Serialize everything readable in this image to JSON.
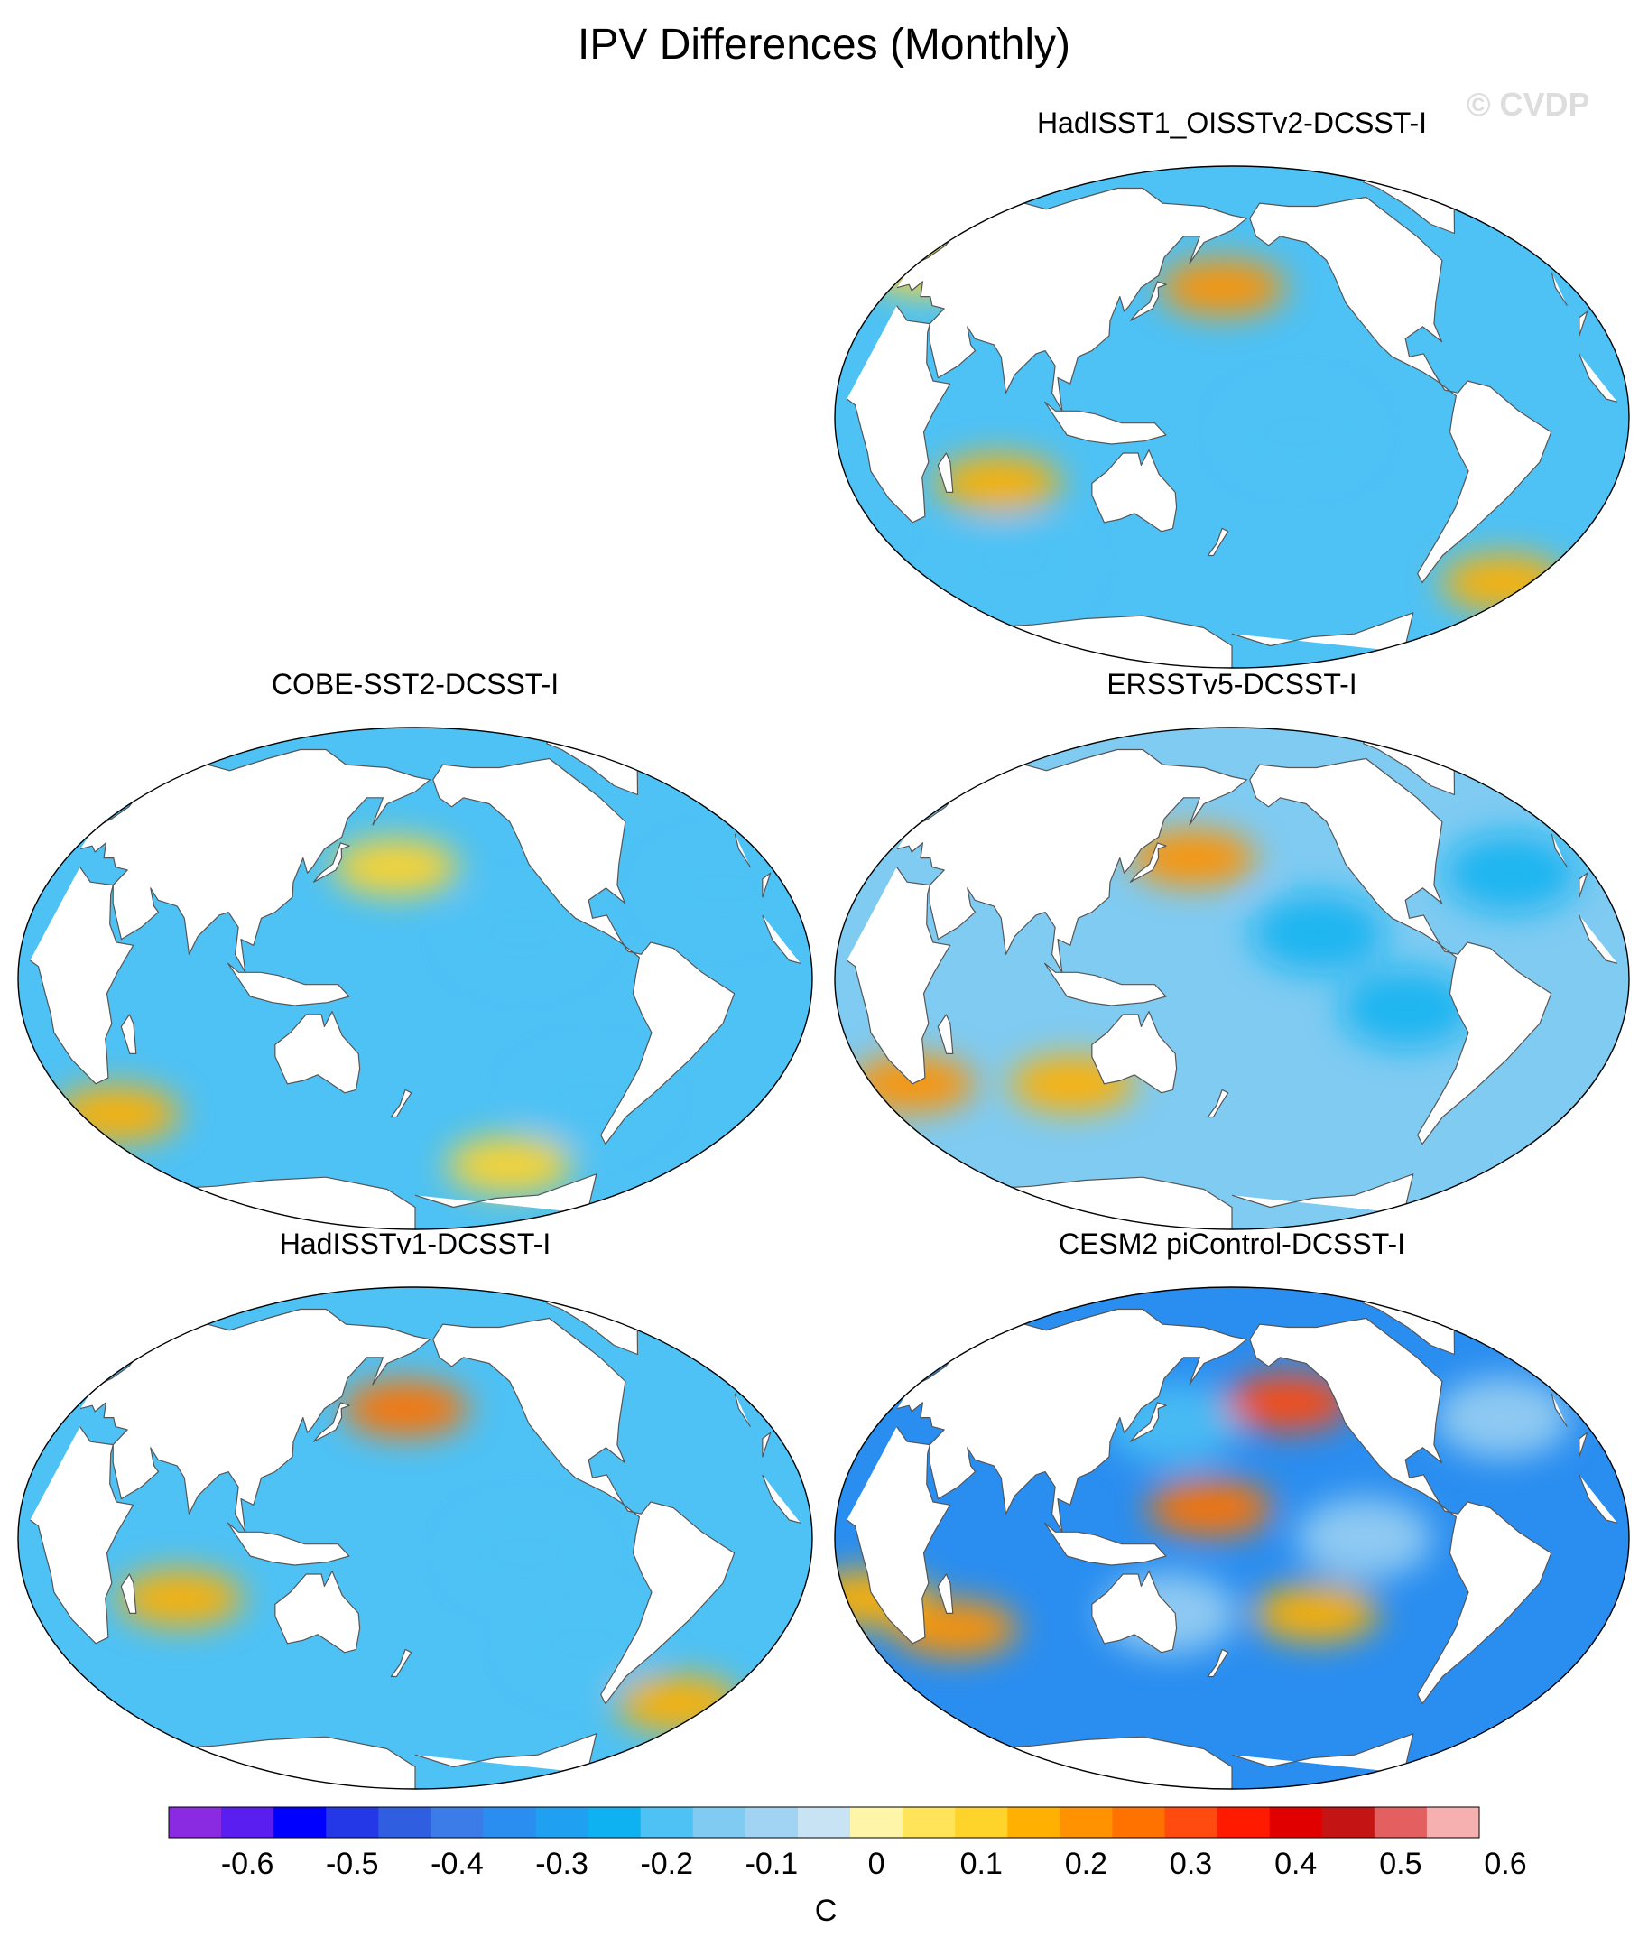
{
  "title": "IPV Differences (Monthly)",
  "watermark": "© CVDP",
  "panels": [
    {
      "id": "p1",
      "title": "HadISST1_OISSTv2-DCSST-I",
      "base": 3,
      "tint": [
        {
          "lon": 175,
          "lat": 43,
          "level": 9
        },
        {
          "lon": 70,
          "lat": -22,
          "level": 8
        },
        {
          "lon": -20,
          "lat": -55,
          "level": 8
        },
        {
          "lon": 10,
          "lat": 50,
          "level": 7
        }
      ],
      "cool": [
        {
          "lon": -150,
          "lat": -5,
          "level": 1
        },
        {
          "lon": 60,
          "lat": -48,
          "level": 1
        }
      ]
    },
    {
      "id": "p2",
      "title": "COBE-SST2-DCSST-I",
      "base": 3,
      "tint": [
        {
          "lon": 170,
          "lat": 37,
          "level": 7
        },
        {
          "lon": 20,
          "lat": -45,
          "level": 8
        },
        {
          "lon": -120,
          "lat": -62,
          "level": 7
        }
      ],
      "cool": [
        {
          "lon": -130,
          "lat": 15,
          "level": 1
        },
        {
          "lon": -90,
          "lat": -40,
          "level": 1
        },
        {
          "lon": -30,
          "lat": 30,
          "level": 1
        }
      ]
    },
    {
      "id": "p3",
      "title": "ERSSTv5-DCSST-I",
      "base": 2,
      "tint": [
        {
          "lon": 160,
          "lat": 40,
          "level": 9
        },
        {
          "lon": 20,
          "lat": -35,
          "level": 9
        },
        {
          "lon": 100,
          "lat": -35,
          "level": 8
        }
      ],
      "cool": [
        {
          "lon": -140,
          "lat": 15,
          "level": 0
        },
        {
          "lon": -100,
          "lat": -10,
          "level": 0
        },
        {
          "lon": -40,
          "lat": 35,
          "level": 0
        }
      ]
    },
    {
      "id": "p4",
      "title": "HadISSTv1-DCSST-I",
      "base": 3,
      "tint": [
        {
          "lon": 175,
          "lat": 43,
          "level": 10
        },
        {
          "lon": 70,
          "lat": -20,
          "level": 8
        },
        {
          "lon": -25,
          "lat": -55,
          "level": 8
        }
      ],
      "cool": [
        {
          "lon": -130,
          "lat": -5,
          "level": 1
        },
        {
          "lon": -95,
          "lat": -35,
          "level": 1
        }
      ]
    },
    {
      "id": "p5",
      "title": "CESM2 piControl-DCSST-I",
      "base": 6,
      "tint": [
        {
          "lon": -150,
          "lat": 45,
          "level": 11
        },
        {
          "lon": 170,
          "lat": 10,
          "level": 10
        },
        {
          "lon": 45,
          "lat": -30,
          "level": 9
        },
        {
          "lon": -140,
          "lat": -25,
          "level": 8
        },
        {
          "lon": 10,
          "lat": -20,
          "level": 8
        }
      ],
      "cool": [
        {
          "lon": 150,
          "lat": 38,
          "level": 1
        },
        {
          "lon": -120,
          "lat": 0,
          "level": 3
        },
        {
          "lon": 150,
          "lat": -25,
          "level": 3
        },
        {
          "lon": -40,
          "lat": 40,
          "level": 3
        }
      ]
    }
  ],
  "colorbar": {
    "unit": "C",
    "labels": [
      "-0.6",
      "-0.5",
      "-0.4",
      "-0.3",
      "-0.2",
      "-0.1",
      "0",
      "0.1",
      "0.2",
      "0.3",
      "0.4",
      "0.5",
      "0.6"
    ],
    "colors": [
      "#8a2be2",
      "#5a1ef0",
      "#0000ff",
      "#2438e8",
      "#2f5fe0",
      "#3c7ce8",
      "#2a8ef0",
      "#1fa0f0",
      "#0eb2f0",
      "#4ec2f5",
      "#7fcbf2",
      "#a0d4f2",
      "#c8e4f4",
      "#fff5a8",
      "#ffe45a",
      "#ffd42a",
      "#ffb000",
      "#ff9200",
      "#ff7200",
      "#ff4a10",
      "#ff1a00",
      "#e00000",
      "#c41414",
      "#e46060",
      "#f6b0b0"
    ]
  }
}
